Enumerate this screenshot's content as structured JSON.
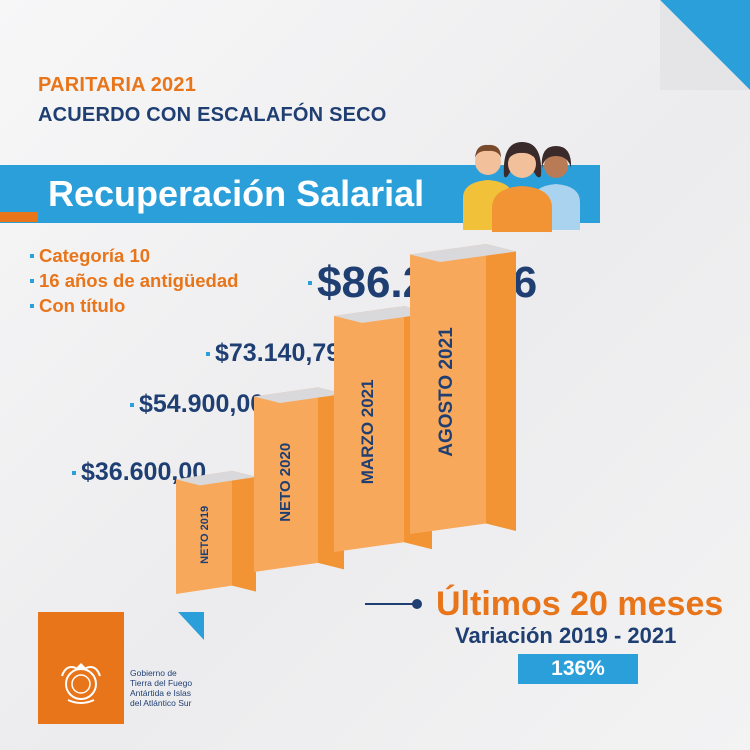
{
  "header": {
    "line1": "PARITARIA 2021",
    "line2": "ACUERDO CON ESCALAFÓN SECO"
  },
  "banner": {
    "title": "Recuperación Salarial",
    "icon": "people-group-icon"
  },
  "conditions": [
    "Categoría 10",
    "16 años de antigüedad",
    "Con título"
  ],
  "chart_data": {
    "type": "bar",
    "categories": [
      "NETO 2019",
      "NETO 2020",
      "MARZO 2021",
      "AGOSTO 2021"
    ],
    "values": [
      36600.0,
      54900.0,
      73140.79,
      86247.96
    ],
    "value_labels": [
      "$36.600,00",
      "$54.900,00",
      "$73.140,79",
      "$86.247,96"
    ],
    "bar_color": "#f29433",
    "grid": false
  },
  "summary": {
    "period": "Últimos 20 meses",
    "variation_label": "Variación 2019 - 2021",
    "variation_value": "136%"
  },
  "logo": {
    "text": [
      "Gobierno de",
      "Tierra del Fuego",
      "Antártida e Islas",
      "del Atlántico Sur"
    ],
    "icon": "government-seal-icon"
  },
  "colors": {
    "orange": "#e8751a",
    "navy": "#1f3f73",
    "blue": "#2b9fd9"
  }
}
